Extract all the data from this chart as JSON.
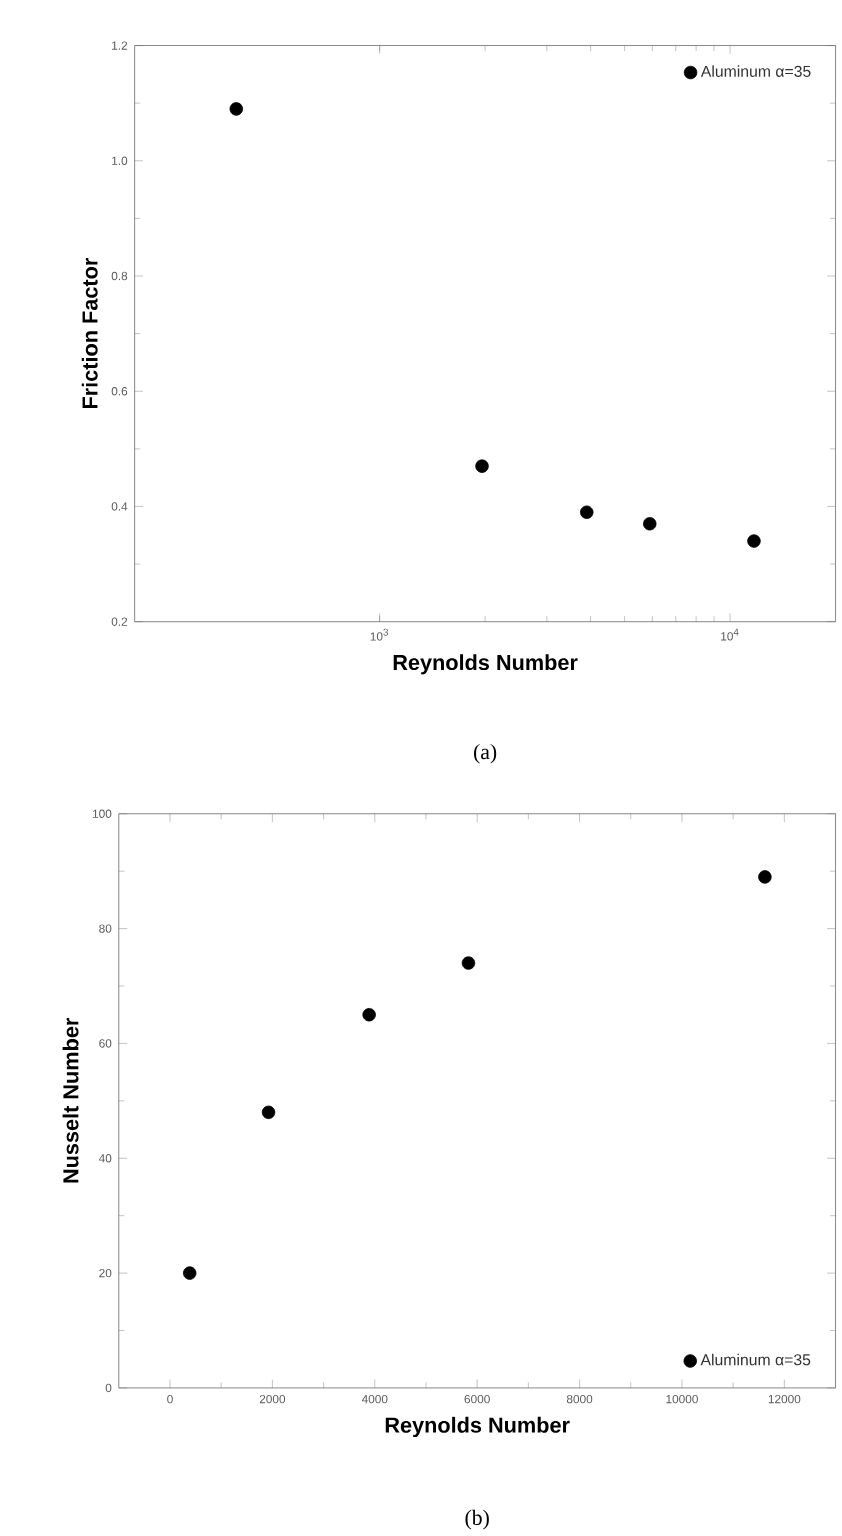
{
  "chart_data": [
    {
      "type": "scatter",
      "xlabel": "Reynolds Number",
      "ylabel": "Friction Factor",
      "log": "x",
      "marker": "circle",
      "legend": "top right",
      "xlim": [
        200,
        20000
      ],
      "ylim": [
        0.2,
        1.2
      ],
      "xticks": [
        {
          "value": 1000,
          "label": "10$^{3}$"
        },
        {
          "value": 10000,
          "label": "10$^{4}$"
        }
      ],
      "yticks": [
        0.2,
        0.4,
        0.6,
        0.8,
        {
          "value": 1,
          "label": "1.0"
        },
        1.2
      ],
      "x": [
        390,
        1960,
        3900,
        5900,
        11700
      ],
      "series": [
        {
          "name": "Aluminum α=35",
          "color": "#000000",
          "values": [
            1.09,
            0.47,
            0.39,
            0.37,
            0.34
          ]
        }
      ],
      "annotations": [
        "(a)"
      ]
    },
    {
      "type": "scatter",
      "xlabel": "Reynolds Number",
      "ylabel": "Nusselt Number",
      "marker": "circle",
      "legend": "bottom right",
      "xlim": [
        -1000,
        13000
      ],
      "ylim": [
        0,
        100
      ],
      "xticks": [
        0,
        2000,
        4000,
        6000,
        8000,
        10000,
        12000
      ],
      "yticks": [
        0,
        20,
        40,
        60,
        80,
        100
      ],
      "x": [
        385,
        1925,
        3890,
        5830,
        11620
      ],
      "series": [
        {
          "name": "Aluminum α=35",
          "color": "#000000",
          "values": [
            20,
            48,
            65,
            74,
            89
          ]
        }
      ],
      "annotations": [
        "(b)"
      ]
    }
  ]
}
